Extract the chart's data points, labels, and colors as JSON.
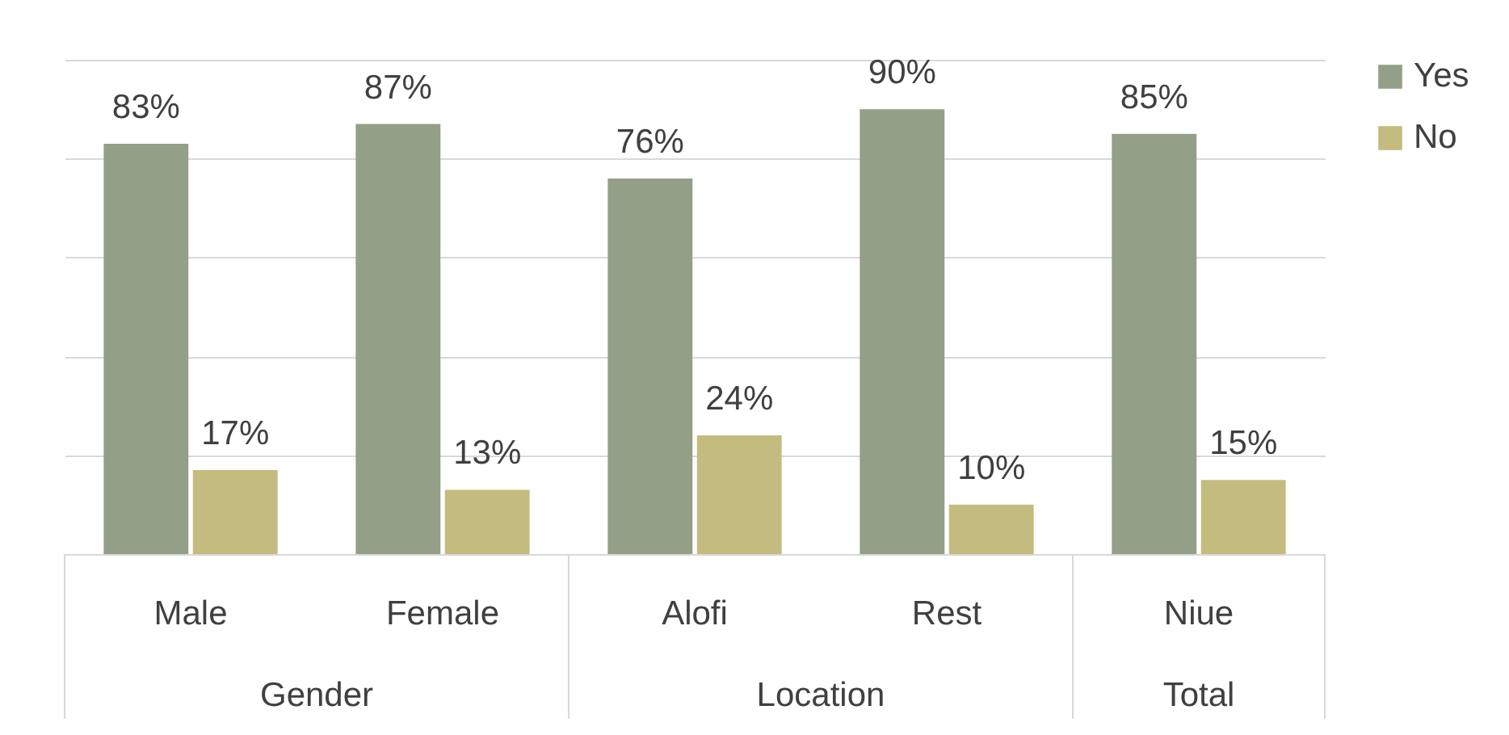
{
  "chart_data": {
    "type": "bar",
    "categories": [
      "Male",
      "Female",
      "Alofi",
      "Rest",
      "Niue"
    ],
    "series": [
      {
        "name": "Yes",
        "color": "#939f86",
        "values": [
          83,
          87,
          76,
          90,
          85
        ],
        "value_labels": [
          "83%",
          "87%",
          "76%",
          "90%",
          "85%"
        ]
      },
      {
        "name": "No",
        "color": "#c4bc7f",
        "values": [
          17,
          13,
          24,
          10,
          15
        ],
        "value_labels": [
          "17%",
          "13%",
          "24%",
          "10%",
          "15%"
        ]
      }
    ],
    "ylim": [
      0,
      100
    ],
    "yticks": [
      {
        "value": 0,
        "label": null
      },
      {
        "value": 20,
        "label": null
      },
      {
        "value": 40,
        "label": null
      },
      {
        "value": 60,
        "label": null
      },
      {
        "value": 80,
        "label": null
      },
      {
        "value": 100,
        "label": null
      }
    ],
    "tick_labels": "x",
    "grid": "y",
    "legend": "right",
    "annotations": [
      "Gender",
      "Location",
      "Total"
    ]
  }
}
